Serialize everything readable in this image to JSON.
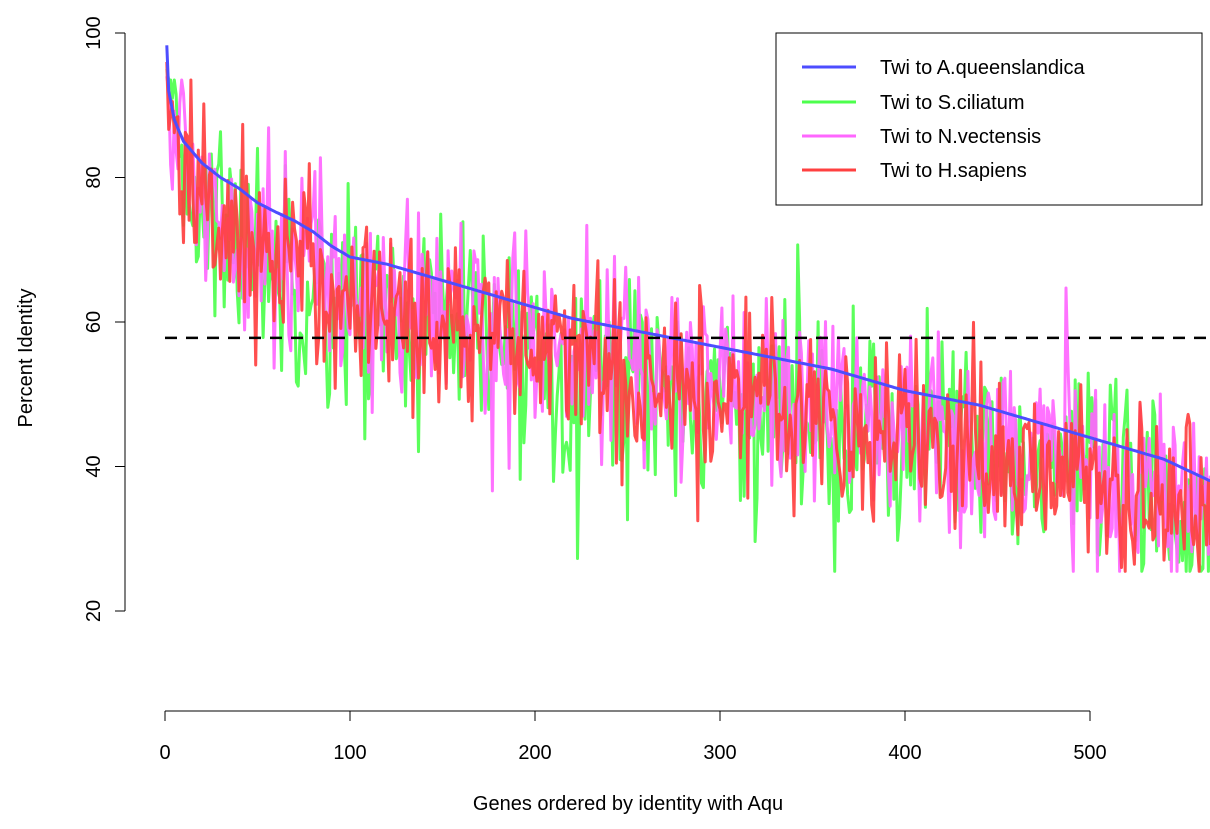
{
  "chart_data": {
    "type": "line",
    "title": "",
    "xlabel": "Genes ordered by identity with Aqu",
    "ylabel": "Percent Identity",
    "xlim": [
      0,
      565
    ],
    "ylim": [
      20,
      100
    ],
    "x_ticks": [
      "0",
      "100",
      "200",
      "300",
      "400",
      "500"
    ],
    "y_ticks": [
      "20",
      "40",
      "60",
      "80",
      "100"
    ],
    "x_tick_values": [
      0,
      100,
      200,
      300,
      400,
      500
    ],
    "y_tick_values": [
      20,
      40,
      60,
      80,
      100
    ],
    "legend_position": "top-right",
    "reference_line": {
      "y": 57.8,
      "style": "dashed",
      "color": "#000000"
    },
    "n_genes": 565,
    "series": [
      {
        "name": "Twi to A.queenslandica",
        "color": "#4d4dff",
        "profile": [
          [
            1,
            98.3
          ],
          [
            2,
            92
          ],
          [
            5,
            88
          ],
          [
            10,
            85
          ],
          [
            15,
            83.5
          ],
          [
            20,
            82
          ],
          [
            30,
            80
          ],
          [
            40,
            78.5
          ],
          [
            50,
            76.5
          ],
          [
            60,
            75.2
          ],
          [
            70,
            74
          ],
          [
            80,
            72.5
          ],
          [
            90,
            70.5
          ],
          [
            100,
            69
          ],
          [
            120,
            68
          ],
          [
            140,
            66.5
          ],
          [
            160,
            65
          ],
          [
            180,
            63.5
          ],
          [
            200,
            62
          ],
          [
            220,
            60.5
          ],
          [
            240,
            59.5
          ],
          [
            260,
            58.5
          ],
          [
            280,
            57.5
          ],
          [
            300,
            56.5
          ],
          [
            320,
            55.5
          ],
          [
            340,
            54.5
          ],
          [
            360,
            53.5
          ],
          [
            380,
            52
          ],
          [
            400,
            50.5
          ],
          [
            420,
            49.5
          ],
          [
            440,
            48.5
          ],
          [
            460,
            47
          ],
          [
            480,
            45.5
          ],
          [
            500,
            44
          ],
          [
            520,
            42.5
          ],
          [
            540,
            41
          ],
          [
            565,
            38
          ]
        ]
      },
      {
        "name": "Twi to S.ciliatum",
        "color": "#4dff4d",
        "noise_sd": 7.5,
        "offset": -6.5,
        "start": 95
      },
      {
        "name": "Twi to N.vectensis",
        "color": "#ff66ff",
        "noise_sd": 7,
        "offset": -4.5,
        "start": 94
      },
      {
        "name": "Twi to H.sapiens",
        "color": "#ff4040",
        "noise_sd": 6.5,
        "offset": -6,
        "start": 96
      }
    ]
  }
}
